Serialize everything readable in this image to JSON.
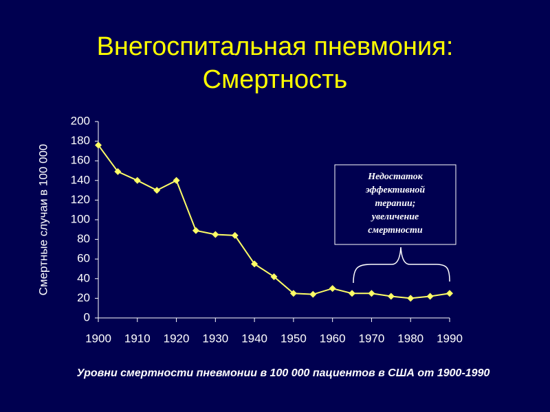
{
  "chart_data": {
    "type": "line",
    "title": [
      "Внегоспитальная пневмония:",
      "Смертность"
    ],
    "y_label": "Смертные случаи в 100 000",
    "caption": "Уровни смертности пневмонии в 100 000 пациентов в США от 1900-1990",
    "annotation": [
      "Недостаток",
      "эффективной",
      "терапии;",
      "увеличение",
      "смертности"
    ],
    "x": [
      1900,
      1905,
      1910,
      1915,
      1920,
      1925,
      1930,
      1935,
      1940,
      1945,
      1950,
      1955,
      1960,
      1965,
      1970,
      1975,
      1980,
      1985,
      1990
    ],
    "values": [
      176,
      149,
      140,
      130,
      140,
      89,
      85,
      84,
      55,
      42,
      25,
      24,
      30,
      25,
      25,
      22,
      20,
      22,
      25
    ],
    "color": "#ffff66",
    "xlim": [
      1900,
      1990
    ],
    "xticks": [
      1900,
      1910,
      1920,
      1930,
      1940,
      1950,
      1960,
      1970,
      1980,
      1990
    ],
    "ylim": [
      0,
      200
    ],
    "yticks": [
      0,
      20,
      40,
      60,
      80,
      100,
      120,
      140,
      160,
      180,
      200
    ]
  }
}
